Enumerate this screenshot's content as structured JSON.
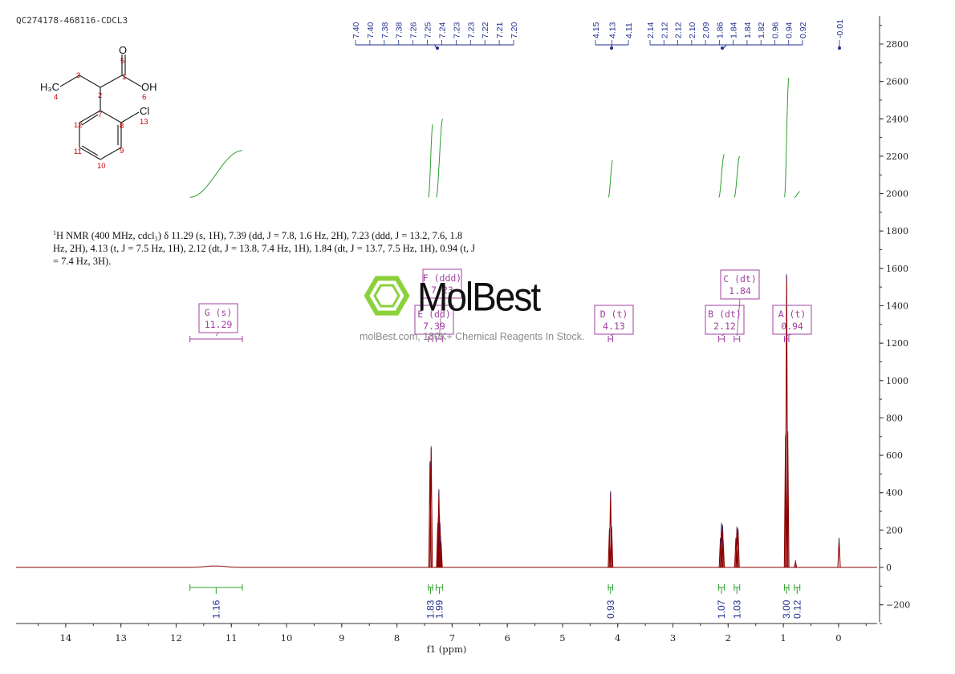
{
  "sample_id": "QC274178-468116-CDCL3",
  "description": {
    "line1_nucleus": "1",
    "line1_rest": "H NMR (400 MHz, cdcl₃) δ 11.29 (s, 1H), 7.39 (dd, J = 7.8, 1.6 Hz, 2H), 7.23 (ddd, J = 13.2, 7.6, 1.8",
    "line2": "Hz, 2H), 4.13 (t, J = 7.5 Hz, 1H), 2.12 (dt, J = 13.8, 7.4 Hz, 1H), 1.84 (dt, J = 13.7, 7.5 Hz, 1H), 0.94 (t, J",
    "line3": "= 7.4 Hz, 3H)."
  },
  "watermark": {
    "name": "MolBest",
    "tagline": "molBest.com, 180K+ Chemical Reagents In Stock."
  },
  "structure": {
    "atoms": [
      "O",
      "OH",
      "Cl",
      "H₃C"
    ],
    "numbers": [
      "1",
      "2",
      "3",
      "4",
      "5",
      "6",
      "7",
      "8",
      "9",
      "10",
      "11",
      "12",
      "13"
    ]
  },
  "chart_data": {
    "type": "line",
    "xlabel": "f1 (ppm)",
    "x_range": [
      14.9,
      -0.7
    ],
    "x_ticks": [
      14,
      13,
      12,
      11,
      10,
      9,
      8,
      7,
      6,
      5,
      4,
      3,
      2,
      1,
      0
    ],
    "y_range": [
      -300,
      2950
    ],
    "y_ticks": [
      2800,
      2600,
      2400,
      2200,
      2000,
      1800,
      1600,
      1400,
      1200,
      1000,
      800,
      600,
      400,
      200,
      0,
      -200
    ],
    "peaks": [
      {
        "ppm": 11.29,
        "height": 8,
        "width": 0.35
      },
      {
        "ppm": 7.4,
        "height": 560,
        "width": 0.006
      },
      {
        "ppm": 7.38,
        "height": 640,
        "width": 0.006
      },
      {
        "ppm": 7.26,
        "height": 230,
        "width": 0.006
      },
      {
        "ppm": 7.25,
        "height": 260,
        "width": 0.006
      },
      {
        "ppm": 7.24,
        "height": 410,
        "width": 0.006
      },
      {
        "ppm": 7.23,
        "height": 280,
        "width": 0.006
      },
      {
        "ppm": 7.22,
        "height": 230,
        "width": 0.006
      },
      {
        "ppm": 7.21,
        "height": 160,
        "width": 0.006
      },
      {
        "ppm": 7.2,
        "height": 130,
        "width": 0.006
      },
      {
        "ppm": 4.15,
        "height": 200,
        "width": 0.006
      },
      {
        "ppm": 4.13,
        "height": 400,
        "width": 0.006
      },
      {
        "ppm": 4.11,
        "height": 210,
        "width": 0.006
      },
      {
        "ppm": 2.14,
        "height": 150,
        "width": 0.006
      },
      {
        "ppm": 2.12,
        "height": 230,
        "width": 0.006
      },
      {
        "ppm": 2.1,
        "height": 220,
        "width": 0.006
      },
      {
        "ppm": 2.09,
        "height": 140,
        "width": 0.006
      },
      {
        "ppm": 1.86,
        "height": 150,
        "width": 0.006
      },
      {
        "ppm": 1.84,
        "height": 210,
        "width": 0.006
      },
      {
        "ppm": 1.82,
        "height": 200,
        "width": 0.006
      },
      {
        "ppm": 0.96,
        "height": 700,
        "width": 0.006
      },
      {
        "ppm": 0.94,
        "height": 1560,
        "width": 0.006
      },
      {
        "ppm": 0.92,
        "height": 720,
        "width": 0.006
      },
      {
        "ppm": 0.78,
        "height": 30,
        "width": 0.01
      },
      {
        "ppm": -0.01,
        "height": 150,
        "width": 0.006
      }
    ],
    "peak_labels": {
      "group1": [
        "7.40",
        "7.40",
        "7.38",
        "7.38",
        "7.26",
        "7.25",
        "7.24",
        "7.23",
        "7.23",
        "7.22",
        "7.21",
        "7.20"
      ],
      "group2": [
        "4.15",
        "4.13",
        "4.11"
      ],
      "group3": [
        "2.14",
        "2.12",
        "2.12",
        "2.10",
        "2.09",
        "1.86",
        "1.84",
        "1.84",
        "1.82",
        "0.96",
        "0.94",
        "0.92"
      ],
      "group4": [
        "-0.01"
      ]
    },
    "multiplets": [
      {
        "id": "G",
        "type": "s",
        "shift": "11.29",
        "from": 11.75,
        "to": 10.8
      },
      {
        "id": "F",
        "type": "ddd",
        "shift": "7.23",
        "from": 7.29,
        "to": 7.17
      },
      {
        "id": "E",
        "type": "dd",
        "shift": "7.39",
        "from": 7.43,
        "to": 7.35
      },
      {
        "id": "D",
        "type": "t",
        "shift": "4.13",
        "from": 4.17,
        "to": 4.09
      },
      {
        "id": "C",
        "type": "dt",
        "shift": "1.84",
        "from": 1.89,
        "to": 1.79
      },
      {
        "id": "B",
        "type": "dt",
        "shift": "2.12",
        "from": 2.17,
        "to": 2.07
      },
      {
        "id": "A",
        "type": "t",
        "shift": "0.94",
        "from": 0.98,
        "to": 0.9
      }
    ],
    "integrals": [
      {
        "value": "1.16",
        "from": 11.75,
        "to": 10.8
      },
      {
        "value": "1.83",
        "from": 7.43,
        "to": 7.35
      },
      {
        "value": "1.99",
        "from": 7.29,
        "to": 7.17
      },
      {
        "value": "0.93",
        "from": 4.17,
        "to": 4.09
      },
      {
        "value": "1.07",
        "from": 2.17,
        "to": 2.07
      },
      {
        "value": "1.03",
        "from": 1.89,
        "to": 1.79
      },
      {
        "value": "3.00",
        "from": 0.98,
        "to": 0.9
      },
      {
        "value": "0.12",
        "from": 0.8,
        "to": 0.7
      }
    ],
    "colors": {
      "spectrum": "#8b0000",
      "integral": "#2e9e2e",
      "peak_label": "#1f2f8f",
      "multiplet": "#a040a0",
      "axis": "#333333"
    }
  }
}
